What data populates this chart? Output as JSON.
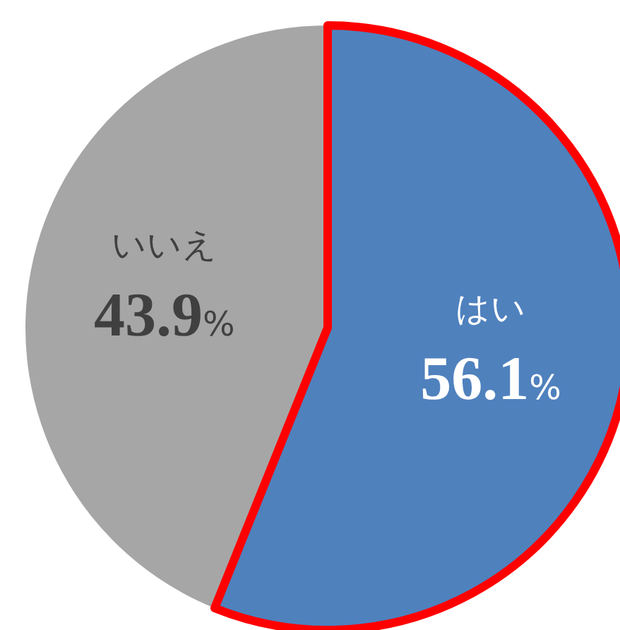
{
  "chart_data": {
    "type": "pie",
    "categories": [
      "はい",
      "いいえ"
    ],
    "values": [
      56.1,
      43.9
    ],
    "colors": [
      "#4f81bd",
      "#a6a6a6"
    ],
    "value_labels": [
      "56.1%",
      "43.9%"
    ]
  }
}
